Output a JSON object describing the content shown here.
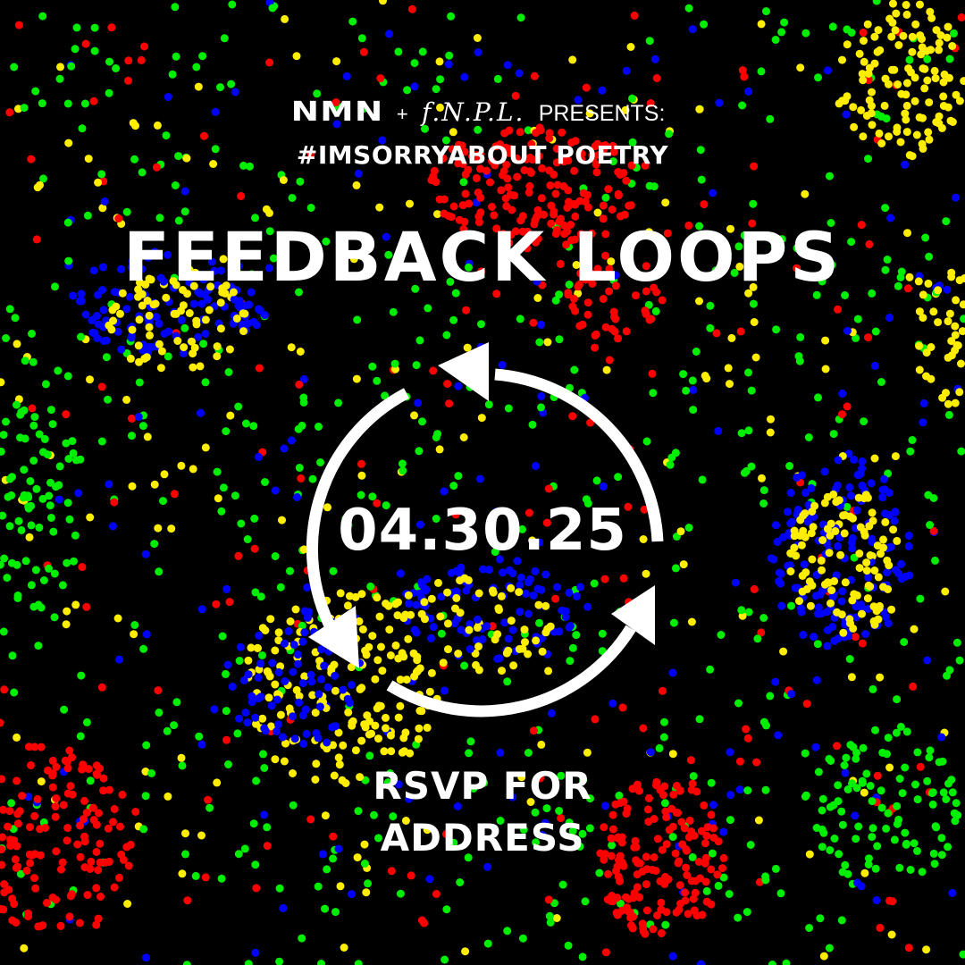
{
  "header": {
    "nmn_logo": "NMN",
    "plus": "+",
    "fnpl_logo": "f.N.P.L.",
    "presents": "PRESENTS:",
    "hashtag": "#IMSORRYABOUT POETRY"
  },
  "event": {
    "title": "FEEDBACK LOOPS",
    "date": "04.30.25",
    "rsvp_line1": "RSVP FOR",
    "rsvp_line2": "ADDRESS"
  },
  "colors": {
    "background": "#000000",
    "text": "#ffffff",
    "dot_red": "#ff0000",
    "dot_green": "#00ee00",
    "dot_blue": "#0000ff",
    "dot_yellow": "#ffee00"
  },
  "icons": {
    "cycle": "refresh-cycle-arrows-icon"
  }
}
